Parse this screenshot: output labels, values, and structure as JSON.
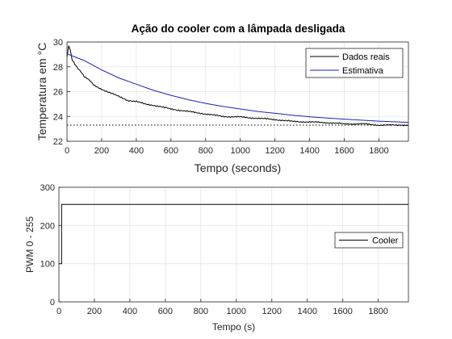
{
  "chart_data": [
    {
      "type": "line",
      "title": "Ação do cooler com a lâmpada desligada",
      "xlabel": "Tempo (seconds)",
      "ylabel": "Temperatura em °C",
      "xlim": [
        0,
        1970
      ],
      "ylim": [
        22,
        30
      ],
      "xticks": [
        "0",
        "200",
        "400",
        "600",
        "800",
        "1000",
        "1200",
        "1400",
        "1600",
        "1800"
      ],
      "yticks": [
        "22",
        "24",
        "26",
        "28",
        "30"
      ],
      "grid": true,
      "legend_position": "top-right",
      "series": [
        {
          "name": "Dados reais",
          "color": "#000000",
          "x": [
            0,
            10,
            20,
            30,
            40,
            60,
            80,
            100,
            130,
            160,
            200,
            250,
            300,
            350,
            400,
            450,
            500,
            600,
            700,
            800,
            900,
            1000,
            1100,
            1200,
            1300,
            1400,
            1500,
            1600,
            1700,
            1800,
            1900,
            1970
          ],
          "y": [
            28.8,
            29.7,
            29.3,
            28.6,
            28.3,
            27.9,
            27.6,
            27.2,
            26.9,
            26.5,
            26.2,
            25.9,
            25.6,
            25.3,
            25.2,
            25.0,
            24.9,
            24.6,
            24.4,
            24.2,
            24.0,
            23.95,
            23.85,
            23.75,
            23.6,
            23.55,
            23.5,
            23.4,
            23.4,
            23.3,
            23.3,
            23.3
          ]
        },
        {
          "name": "Estimativa",
          "color": "#1f1fbf",
          "x": [
            0,
            100,
            200,
            300,
            400,
            500,
            600,
            700,
            800,
            900,
            1000,
            1100,
            1200,
            1300,
            1400,
            1500,
            1600,
            1700,
            1800,
            1900,
            1970
          ],
          "y": [
            29.05,
            28.5,
            27.75,
            27.1,
            26.6,
            26.1,
            25.7,
            25.35,
            25.05,
            24.8,
            24.6,
            24.4,
            24.25,
            24.1,
            23.97,
            23.87,
            23.78,
            23.7,
            23.62,
            23.56,
            23.52
          ]
        },
        {
          "name": "",
          "color": "#000000",
          "style": "dotted",
          "x": [
            0,
            1970
          ],
          "y": [
            23.3,
            23.3
          ]
        }
      ]
    },
    {
      "type": "line",
      "title": "",
      "xlabel": "Tempo (s)",
      "ylabel": "PWM 0 - 255",
      "xlim": [
        0,
        1970
      ],
      "ylim": [
        0,
        300
      ],
      "xticks": [
        "0",
        "200",
        "400",
        "600",
        "800",
        "1000",
        "1200",
        "1400",
        "1600",
        "1800"
      ],
      "yticks": [
        "0",
        "100",
        "200",
        "300"
      ],
      "grid": true,
      "legend_position": "right",
      "series": [
        {
          "name": "Cooler",
          "color": "#000000",
          "x": [
            0,
            15,
            15,
            1970
          ],
          "y": [
            100,
            100,
            255,
            255
          ]
        }
      ]
    }
  ]
}
